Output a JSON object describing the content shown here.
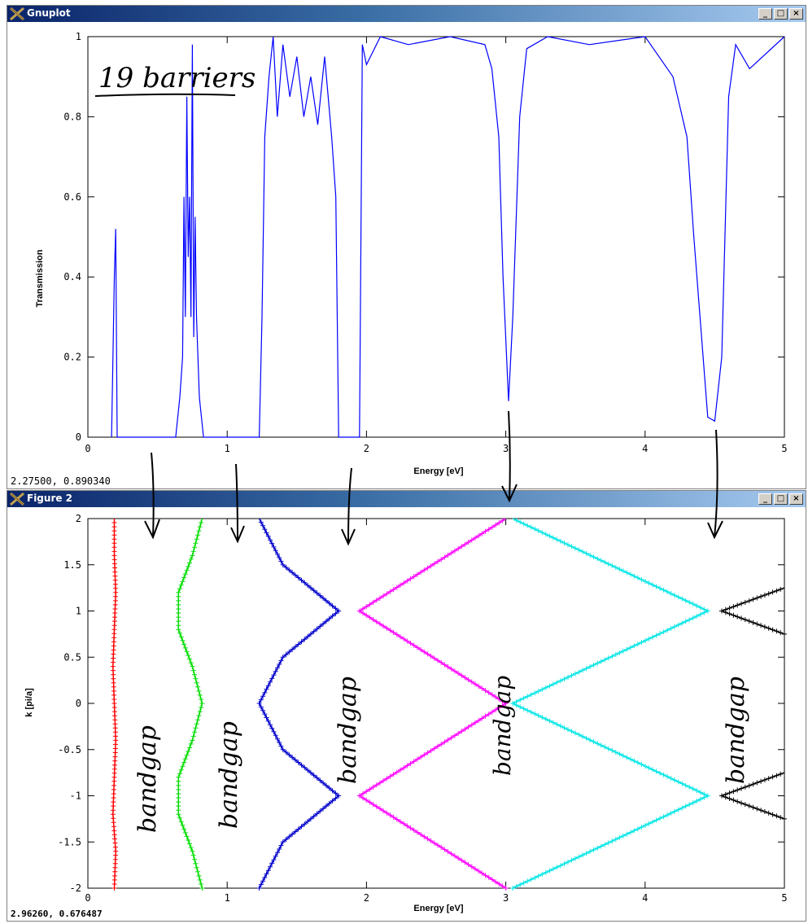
{
  "windows": [
    {
      "title": "Gnuplot",
      "status": "2.27500,  0.890340"
    },
    {
      "title": "Figure 2",
      "status": "2.96260,  0.676487"
    }
  ],
  "controls": {
    "minimize": "_",
    "maximize": "□",
    "close": "×"
  },
  "colors": {
    "bands": [
      "#ff0000",
      "#00dd00",
      "#0000cc",
      "#ff00ff",
      "#00e5e5",
      "#000000"
    ],
    "transmission": "#0000ff"
  },
  "annotations": {
    "title": "19 barriers",
    "bandgap": "bandgap"
  },
  "chart_data": [
    {
      "type": "line",
      "xlabel": "Energy [eV]",
      "ylabel": "Transmission",
      "xlim": [
        0,
        5
      ],
      "ylim": [
        0,
        1
      ],
      "xticks": [
        "0",
        "1",
        "2",
        "3",
        "4",
        "5"
      ],
      "yticks": [
        "0",
        "0.2",
        "0.4",
        "0.6",
        "0.8",
        "1"
      ],
      "series": [
        {
          "points": [
            [
              0.17,
              0
            ],
            [
              0.19,
              0.4
            ],
            [
              0.2,
              0.52
            ],
            [
              0.21,
              0
            ],
            [
              0.63,
              0
            ],
            [
              0.66,
              0.1
            ],
            [
              0.68,
              0.2
            ],
            [
              0.69,
              0.6
            ],
            [
              0.7,
              0.3
            ],
            [
              0.71,
              0.85
            ],
            [
              0.72,
              0.45
            ],
            [
              0.73,
              0.6
            ],
            [
              0.74,
              0.3
            ],
            [
              0.75,
              0.98
            ],
            [
              0.76,
              0.25
            ],
            [
              0.77,
              0.55
            ],
            [
              0.78,
              0.3
            ],
            [
              0.8,
              0.1
            ],
            [
              0.83,
              0
            ],
            [
              1.23,
              0
            ],
            [
              1.25,
              0.3
            ],
            [
              1.27,
              0.75
            ],
            [
              1.3,
              0.9
            ],
            [
              1.33,
              1
            ],
            [
              1.36,
              0.8
            ],
            [
              1.4,
              0.98
            ],
            [
              1.45,
              0.85
            ],
            [
              1.5,
              0.95
            ],
            [
              1.55,
              0.8
            ],
            [
              1.6,
              0.9
            ],
            [
              1.65,
              0.78
            ],
            [
              1.7,
              0.95
            ],
            [
              1.75,
              0.75
            ],
            [
              1.78,
              0.6
            ],
            [
              1.8,
              0
            ],
            [
              1.95,
              0
            ],
            [
              1.97,
              0.98
            ],
            [
              2.0,
              0.93
            ],
            [
              2.1,
              1
            ],
            [
              2.3,
              0.98
            ],
            [
              2.6,
              1
            ],
            [
              2.85,
              0.98
            ],
            [
              2.9,
              0.92
            ],
            [
              2.95,
              0.75
            ],
            [
              2.98,
              0.4
            ],
            [
              3.02,
              0.09
            ],
            [
              3.05,
              0.3
            ],
            [
              3.1,
              0.8
            ],
            [
              3.15,
              0.97
            ],
            [
              3.3,
              1
            ],
            [
              3.6,
              0.98
            ],
            [
              4.0,
              1
            ],
            [
              4.2,
              0.9
            ],
            [
              4.3,
              0.75
            ],
            [
              4.35,
              0.5
            ],
            [
              4.45,
              0.05
            ],
            [
              4.5,
              0.04
            ],
            [
              4.55,
              0.2
            ],
            [
              4.6,
              0.85
            ],
            [
              4.65,
              0.98
            ],
            [
              4.75,
              0.92
            ],
            [
              5.0,
              1
            ]
          ]
        }
      ]
    },
    {
      "type": "scatter",
      "xlabel": "Energy [eV]",
      "ylabel": "k [pi/a]",
      "xlim": [
        0,
        5
      ],
      "ylim": [
        -2,
        2
      ],
      "xticks": [
        "0",
        "1",
        "2",
        "3",
        "4",
        "5"
      ],
      "yticks": [
        "-2",
        "-1.5",
        "-1",
        "-0.5",
        "0",
        "0.5",
        "1",
        "1.5",
        "2"
      ],
      "series": [
        {
          "x": [
            0.19,
            0.2,
            0.18,
            0.19,
            0.2,
            0.19,
            0.18,
            0.19,
            0.2,
            0.19,
            0.19
          ],
          "y": [
            -2,
            -1.6,
            -1.2,
            -0.8,
            -0.4,
            0,
            0.4,
            0.8,
            1.2,
            1.6,
            2
          ]
        },
        {
          "x": [
            0.82,
            0.75,
            0.65,
            0.65,
            0.75,
            0.82,
            0.75,
            0.65,
            0.65,
            0.75,
            0.82
          ],
          "y": [
            -2,
            -1.6,
            -1.2,
            -0.8,
            -0.4,
            0,
            0.4,
            0.8,
            1.2,
            1.6,
            2
          ]
        },
        {
          "x": [
            1.23,
            1.4,
            1.8,
            1.4,
            1.23,
            1.4,
            1.8,
            1.4,
            1.23
          ],
          "y": [
            -2,
            -1.5,
            -1,
            -0.5,
            0,
            0.5,
            1,
            1.5,
            2
          ]
        },
        {
          "x": [
            3.0,
            1.95,
            3.0,
            1.95,
            3.0
          ],
          "y": [
            -2,
            -1,
            0,
            1,
            2
          ]
        },
        {
          "x": [
            3.05,
            4.45,
            3.05,
            4.45,
            3.05
          ],
          "y": [
            -2,
            -1,
            0,
            1,
            2
          ]
        },
        {
          "x": [
            5.0,
            4.55,
            5.0
          ],
          "y": [
            -1.25,
            -1,
            -0.75
          ]
        },
        {
          "x": [
            5.0,
            4.55,
            5.0
          ],
          "y": [
            0.75,
            1,
            1.25
          ]
        }
      ]
    }
  ]
}
